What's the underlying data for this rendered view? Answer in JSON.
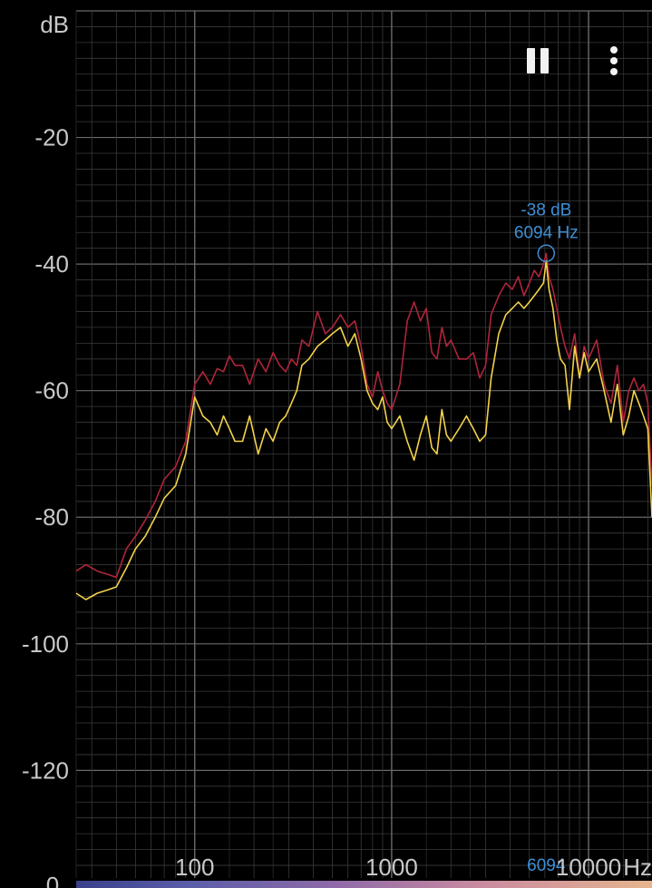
{
  "controls": {
    "pause_icon": "pause-icon",
    "menu_icon": "more-vert-icon"
  },
  "colorbar": {
    "zero_label": "0"
  },
  "chart_data": {
    "type": "line",
    "title": "",
    "xlabel": "",
    "ylabel": "dB",
    "x_unit_label": "Hz",
    "x_scale": "log",
    "xlim": [
      25,
      21000
    ],
    "ylim": [
      -137,
      0
    ],
    "y_tick_labels": [
      "dB",
      "-20",
      "-40",
      "-60",
      "-80",
      "-100",
      "-120"
    ],
    "y_ticks": [
      0,
      -20,
      -40,
      -60,
      -80,
      -100,
      -120
    ],
    "x_tick_labels": [
      "100",
      "1000",
      "10000"
    ],
    "x_ticks": [
      100,
      1000,
      10000
    ],
    "grid": true,
    "peak": {
      "db_label": "-38 dB",
      "hz_label": "6094 Hz",
      "axis_label": "6094",
      "freq": 6094,
      "db": -38.3
    },
    "colors": {
      "peak_hold": "#b0243c",
      "current": "#f3d24a",
      "peak_marker": "#3d8fd6",
      "grid": "#3a3a3a",
      "grid_major": "#6a6a6a"
    },
    "series": [
      {
        "x": [
          25,
          28,
          32,
          36,
          40,
          45,
          50,
          56,
          63,
          70,
          80,
          90,
          100,
          110,
          120,
          130,
          140,
          150,
          160,
          175,
          190,
          210,
          230,
          250,
          270,
          290,
          310,
          330,
          350,
          380,
          420,
          460,
          500,
          550,
          600,
          650,
          700,
          750,
          800,
          850,
          900,
          950,
          1000,
          1050,
          1100,
          1200,
          1300,
          1400,
          1500,
          1600,
          1700,
          1800,
          1900,
          2000,
          2200,
          2400,
          2600,
          2800,
          3000,
          3200,
          3500,
          3800,
          4100,
          4400,
          4700,
          5000,
          5300,
          5600,
          5900,
          6094,
          6300,
          6600,
          6900,
          7200,
          7600,
          8000,
          8500,
          9000,
          9500,
          10000,
          11000,
          12000,
          13000,
          14000,
          15000,
          16000,
          17000,
          18000,
          19000,
          20000,
          21000
        ],
        "values": [
          -88.5,
          -87.5,
          -88.5,
          -89,
          -89.5,
          -85,
          -83,
          -80.5,
          -77.5,
          -74,
          -72,
          -68,
          -59,
          -57,
          -59,
          -56.5,
          -57,
          -54.5,
          -56,
          -56,
          -59,
          -55,
          -57,
          -54,
          -56,
          -57,
          -55,
          -56,
          -52,
          -53,
          -47.5,
          -51,
          -50,
          -48,
          -50,
          -49,
          -53,
          -59,
          -61,
          -57,
          -60,
          -62,
          -63,
          -61,
          -59,
          -49,
          -46,
          -49,
          -47,
          -54,
          -55,
          -50,
          -53,
          -52,
          -55,
          -55,
          -54,
          -58,
          -56,
          -48,
          -45,
          -43,
          -44,
          -42,
          -45,
          -43,
          -41,
          -42,
          -40,
          -38.3,
          -42,
          -44,
          -47,
          -50,
          -53,
          -55,
          -51,
          -58,
          -53,
          -55,
          -52,
          -59,
          -62,
          -56,
          -65,
          -60,
          -58,
          -60,
          -59,
          -62,
          -75
        ]
      },
      {
        "x": [
          25,
          28,
          32,
          36,
          40,
          45,
          50,
          56,
          63,
          70,
          80,
          90,
          100,
          110,
          120,
          130,
          140,
          150,
          160,
          175,
          190,
          210,
          230,
          250,
          270,
          290,
          310,
          330,
          350,
          380,
          420,
          460,
          500,
          550,
          600,
          650,
          700,
          750,
          800,
          850,
          900,
          950,
          1000,
          1050,
          1100,
          1200,
          1300,
          1400,
          1500,
          1600,
          1700,
          1800,
          1900,
          2000,
          2200,
          2400,
          2600,
          2800,
          3000,
          3200,
          3500,
          3800,
          4100,
          4400,
          4700,
          5000,
          5300,
          5600,
          5900,
          6094,
          6300,
          6600,
          6900,
          7200,
          7600,
          8000,
          8500,
          9000,
          9500,
          10000,
          11000,
          12000,
          13000,
          14000,
          15000,
          16000,
          17000,
          18000,
          19000,
          20000,
          21000
        ],
        "values": [
          -92,
          -93,
          -92,
          -91.5,
          -91,
          -88,
          -85,
          -83,
          -80,
          -77,
          -75,
          -70,
          -61,
          -64,
          -65,
          -67,
          -64,
          -66,
          -68,
          -68,
          -64,
          -70,
          -66,
          -68,
          -65,
          -64,
          -62,
          -60,
          -56,
          -55,
          -53,
          -52,
          -51,
          -50,
          -53,
          -51,
          -55,
          -60,
          -62,
          -63,
          -61,
          -65,
          -66,
          -65,
          -64,
          -68,
          -71,
          -67,
          -64,
          -69,
          -70,
          -63,
          -67,
          -68,
          -66,
          -64,
          -66,
          -68,
          -67,
          -58,
          -51,
          -48,
          -47,
          -46,
          -47,
          -46,
          -45,
          -44,
          -43,
          -39.5,
          -44,
          -47,
          -52,
          -55,
          -56,
          -63,
          -53,
          -58,
          -54,
          -57,
          -55,
          -60,
          -65,
          -59,
          -67,
          -64,
          -60,
          -62,
          -64,
          -66,
          -80
        ]
      }
    ]
  }
}
